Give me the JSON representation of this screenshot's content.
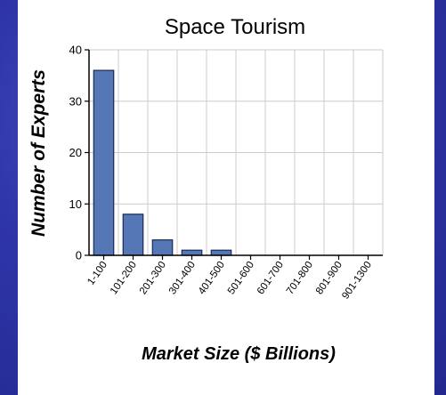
{
  "chart_data": {
    "type": "bar",
    "title": "Space Tourism",
    "xlabel": "Market Size ($ Billions)",
    "ylabel": "Number of Experts",
    "categories": [
      "1-100",
      "101-200",
      "201-300",
      "301-400",
      "401-500",
      "501-600",
      "601-700",
      "701-800",
      "801-900",
      "901-1300"
    ],
    "values": [
      36,
      8,
      3,
      1,
      1,
      0,
      0,
      0,
      0,
      0
    ],
    "ylim": [
      0,
      40
    ],
    "yticks": [
      0,
      10,
      20,
      30,
      40
    ],
    "grid": true,
    "colors": {
      "bar": "#5577b5",
      "bar_stroke": "#1a2a55",
      "grid": "#cccccc"
    }
  }
}
